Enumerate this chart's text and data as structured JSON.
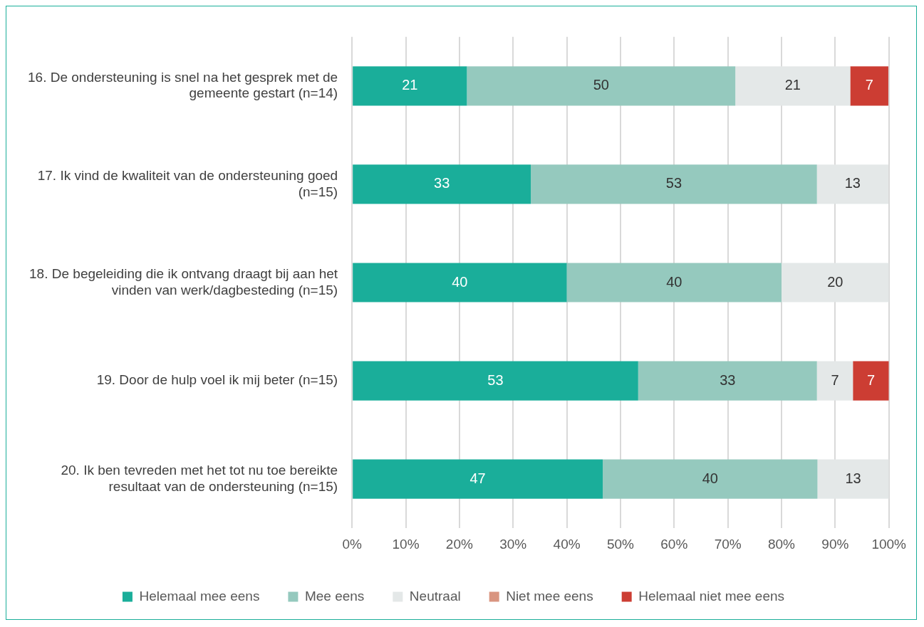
{
  "chart_data": {
    "type": "bar",
    "orientation": "horizontal",
    "stacked": true,
    "categories": [
      "16. De ondersteuning is snel na het gesprek met de gemeente gestart (n=14)",
      "17. Ik vind de kwaliteit van de ondersteuning goed (n=15)",
      "18. De begeleiding die ik ontvang draagt bij aan het vinden van werk/dagbesteding (n=15)",
      "19. Door de hulp voel ik mij beter (n=15)",
      "20. Ik ben tevreden met het tot nu toe bereikte resultaat van de ondersteuning (n=15)"
    ],
    "series": [
      {
        "name": "Helemaal mee eens",
        "color": "#1aae9a",
        "values": [
          21.4,
          33.3,
          40,
          53.3,
          46.7
        ],
        "value_labels": [
          "21",
          "33",
          "40",
          "53",
          "47"
        ]
      },
      {
        "name": "Mee eens",
        "color": "#95c9be",
        "values": [
          50,
          53.3,
          40,
          33.3,
          40
        ],
        "value_labels": [
          "50",
          "53",
          "40",
          "33",
          "40"
        ]
      },
      {
        "name": "Neutraal",
        "color": "#e4e8e8",
        "values": [
          21.4,
          13.3,
          20,
          6.7,
          13.3
        ],
        "value_labels": [
          "21",
          "13",
          "20",
          "7",
          "13"
        ]
      },
      {
        "name": "Niet mee eens",
        "color": "#d99580",
        "values": [
          0,
          0,
          0,
          0,
          0
        ],
        "value_labels": [
          null,
          null,
          null,
          null,
          null
        ]
      },
      {
        "name": "Helemaal niet mee eens",
        "color": "#cc3d33",
        "values": [
          7.1,
          0,
          0,
          6.7,
          0
        ],
        "value_labels": [
          "7",
          null,
          null,
          "7",
          null
        ]
      }
    ],
    "xlim": [
      0,
      100
    ],
    "xticks": [
      {
        "value": 0,
        "label": "0%"
      },
      {
        "value": 10,
        "label": "10%"
      },
      {
        "value": 20,
        "label": "20%"
      },
      {
        "value": 30,
        "label": "30%"
      },
      {
        "value": 40,
        "label": "40%"
      },
      {
        "value": 50,
        "label": "50%"
      },
      {
        "value": 60,
        "label": "60%"
      },
      {
        "value": 70,
        "label": "70%"
      },
      {
        "value": 80,
        "label": "80%"
      },
      {
        "value": 90,
        "label": "90%"
      },
      {
        "value": 100,
        "label": "100%"
      }
    ],
    "grid": "x",
    "legend": "bottom"
  }
}
